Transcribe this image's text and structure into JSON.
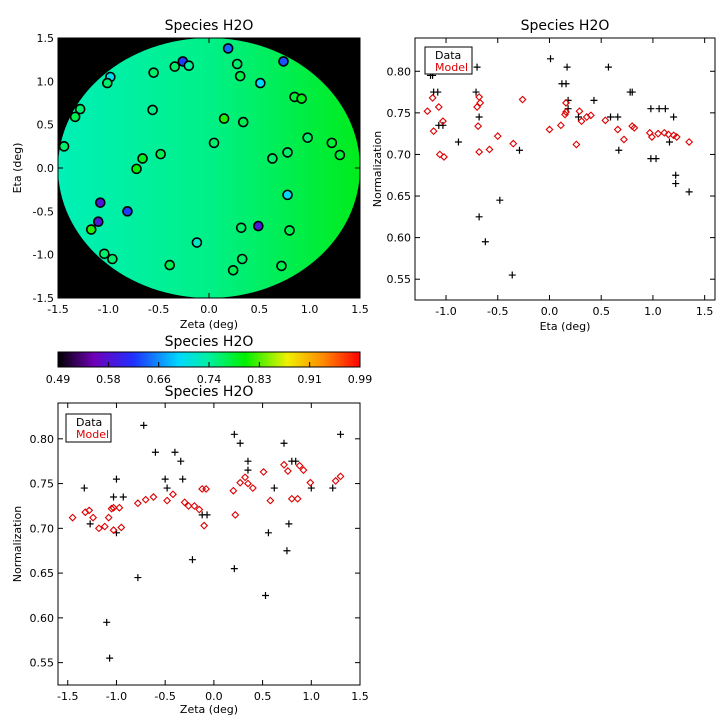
{
  "panels": {
    "map": {
      "title": "Species H2O",
      "xlabel": "Zeta (deg)",
      "ylabel": "Eta (deg)"
    },
    "colorbar": {
      "title": "Species H2O"
    },
    "eta_plot": {
      "title": "Species H2O",
      "xlabel": "Eta (deg)",
      "ylabel": "Normalization"
    },
    "zeta_plot": {
      "title": "Species H2O",
      "xlabel": "Zeta (deg)",
      "ylabel": "Normalization"
    },
    "legend": {
      "data_label": "Data",
      "model_label": "Model"
    }
  },
  "colors": {
    "data": "#000000",
    "model": "#dd0000",
    "field_background": "#000000"
  },
  "chart_data": [
    {
      "type": "scatter",
      "panel": "map",
      "title": "Species H2O",
      "xlabel": "Zeta (deg)",
      "ylabel": "Eta (deg)",
      "xlim": [
        -1.5,
        1.5
      ],
      "ylim": [
        -1.5,
        1.5
      ],
      "xticks": [
        -1.5,
        -1.0,
        -0.5,
        0.0,
        0.5,
        1.0,
        1.5
      ],
      "yticks": [
        -1.5,
        -1.0,
        -0.5,
        0.0,
        0.5,
        1.0,
        1.5
      ],
      "xtick_labels": [
        "-1.5",
        "-1.0",
        "-0.5",
        "0.0",
        "0.5",
        "1.0",
        "1.5"
      ],
      "ytick_labels": [
        "-1.5",
        "-1.0",
        "-0.5",
        "0.0",
        "0.5",
        "1.0",
        "1.5"
      ],
      "field": "circular model map, value increasing from about 0.70 at left to about 0.77 at right",
      "points": [
        {
          "zeta": 0.19,
          "eta": 1.38,
          "value": 0.64
        },
        {
          "zeta": 0.74,
          "eta": 1.23,
          "value": 0.63
        },
        {
          "zeta": -0.26,
          "eta": 1.23,
          "value": 0.62
        },
        {
          "zeta": -0.34,
          "eta": 1.17,
          "value": 0.76
        },
        {
          "zeta": -0.2,
          "eta": 1.18,
          "value": 0.74
        },
        {
          "zeta": 0.28,
          "eta": 1.2,
          "value": 0.76
        },
        {
          "zeta": -0.55,
          "eta": 1.1,
          "value": 0.76
        },
        {
          "zeta": 0.31,
          "eta": 1.06,
          "value": 0.77
        },
        {
          "zeta": -0.98,
          "eta": 1.05,
          "value": 0.7
        },
        {
          "zeta": -1.01,
          "eta": 0.98,
          "value": 0.76
        },
        {
          "zeta": 0.51,
          "eta": 0.98,
          "value": 0.69
        },
        {
          "zeta": 0.85,
          "eta": 0.82,
          "value": 0.78
        },
        {
          "zeta": 0.92,
          "eta": 0.8,
          "value": 0.79
        },
        {
          "zeta": -1.28,
          "eta": 0.68,
          "value": 0.76
        },
        {
          "zeta": -1.33,
          "eta": 0.59,
          "value": 0.77
        },
        {
          "zeta": -0.56,
          "eta": 0.67,
          "value": 0.75
        },
        {
          "zeta": 0.15,
          "eta": 0.57,
          "value": 0.81
        },
        {
          "zeta": 0.34,
          "eta": 0.53,
          "value": 0.77
        },
        {
          "zeta": 0.98,
          "eta": 0.35,
          "value": 0.76
        },
        {
          "zeta": 1.22,
          "eta": 0.29,
          "value": 0.78
        },
        {
          "zeta": 0.05,
          "eta": 0.29,
          "value": 0.76
        },
        {
          "zeta": -1.44,
          "eta": 0.25,
          "value": 0.76
        },
        {
          "zeta": -0.48,
          "eta": 0.16,
          "value": 0.77
        },
        {
          "zeta": 0.78,
          "eta": 0.18,
          "value": 0.76
        },
        {
          "zeta": -0.66,
          "eta": 0.11,
          "value": 0.79
        },
        {
          "zeta": 0.63,
          "eta": 0.11,
          "value": 0.76
        },
        {
          "zeta": 1.3,
          "eta": 0.15,
          "value": 0.78
        },
        {
          "zeta": -0.72,
          "eta": -0.01,
          "value": 0.8
        },
        {
          "zeta": 0.78,
          "eta": -0.31,
          "value": 0.69
        },
        {
          "zeta": -1.08,
          "eta": -0.4,
          "value": 0.58
        },
        {
          "zeta": -0.81,
          "eta": -0.5,
          "value": 0.62
        },
        {
          "zeta": -1.1,
          "eta": -0.62,
          "value": 0.58
        },
        {
          "zeta": -1.17,
          "eta": -0.71,
          "value": 0.81
        },
        {
          "zeta": 0.49,
          "eta": -0.67,
          "value": 0.58
        },
        {
          "zeta": 0.32,
          "eta": -0.69,
          "value": 0.76
        },
        {
          "zeta": 0.8,
          "eta": -0.72,
          "value": 0.77
        },
        {
          "zeta": -0.12,
          "eta": -0.86,
          "value": 0.72
        },
        {
          "zeta": -1.04,
          "eta": -0.99,
          "value": 0.76
        },
        {
          "zeta": -0.96,
          "eta": -1.05,
          "value": 0.76
        },
        {
          "zeta": 0.33,
          "eta": -1.05,
          "value": 0.76
        },
        {
          "zeta": -0.39,
          "eta": -1.12,
          "value": 0.77
        },
        {
          "zeta": 0.24,
          "eta": -1.18,
          "value": 0.77
        },
        {
          "zeta": 0.72,
          "eta": -1.13,
          "value": 0.77
        }
      ]
    },
    {
      "type": "heatmap",
      "panel": "colorbar",
      "title": "Species H2O",
      "range": [
        0.49,
        0.99
      ],
      "tick_labels": [
        "0.49",
        "0.58",
        "0.66",
        "0.74",
        "0.83",
        "0.91",
        "0.99"
      ],
      "colormap": "rainbow: black, violet, blue, cyan, green, yellow, orange, red"
    },
    {
      "type": "scatter",
      "panel": "eta_plot",
      "title": "Species H2O",
      "xlabel": "Eta (deg)",
      "ylabel": "Normalization",
      "xlim": [
        -1.3,
        1.6
      ],
      "ylim": [
        0.525,
        0.84
      ],
      "xticks": [
        -1.0,
        -0.5,
        0.0,
        0.5,
        1.0,
        1.5
      ],
      "yticks": [
        0.55,
        0.6,
        0.65,
        0.7,
        0.75,
        0.8
      ],
      "xtick_labels": [
        "-1.0",
        "-0.5",
        "0.0",
        "0.5",
        "1.0",
        "1.5"
      ],
      "ytick_labels": [
        "0.55",
        "0.60",
        "0.65",
        "0.70",
        "0.75",
        "0.80"
      ],
      "legend": "top-left",
      "series": [
        {
          "name": "Data",
          "marker": "plus",
          "points": [
            [
              -1.15,
              0.795
            ],
            [
              -1.13,
              0.795
            ],
            [
              -1.12,
              0.775
            ],
            [
              -1.08,
              0.775
            ],
            [
              -1.07,
              0.735
            ],
            [
              -1.03,
              0.735
            ],
            [
              -0.88,
              0.715
            ],
            [
              -0.7,
              0.805
            ],
            [
              -0.71,
              0.775
            ],
            [
              -0.68,
              0.745
            ],
            [
              -0.68,
              0.625
            ],
            [
              -0.62,
              0.595
            ],
            [
              -0.48,
              0.645
            ],
            [
              -0.36,
              0.555
            ],
            [
              -0.29,
              0.705
            ],
            [
              0.01,
              0.815
            ],
            [
              0.12,
              0.785
            ],
            [
              0.16,
              0.785
            ],
            [
              0.17,
              0.805
            ],
            [
              0.18,
              0.765
            ],
            [
              0.18,
              0.755
            ],
            [
              0.28,
              0.745
            ],
            [
              0.43,
              0.765
            ],
            [
              0.57,
              0.805
            ],
            [
              0.59,
              0.745
            ],
            [
              0.66,
              0.745
            ],
            [
              0.67,
              0.705
            ],
            [
              0.78,
              0.775
            ],
            [
              0.8,
              0.775
            ],
            [
              0.98,
              0.695
            ],
            [
              1.03,
              0.695
            ],
            [
              0.98,
              0.755
            ],
            [
              1.06,
              0.755
            ],
            [
              1.12,
              0.755
            ],
            [
              1.16,
              0.715
            ],
            [
              1.2,
              0.745
            ],
            [
              1.22,
              0.675
            ],
            [
              1.22,
              0.665
            ],
            [
              1.35,
              0.655
            ]
          ]
        },
        {
          "name": "Model",
          "marker": "diamond",
          "points": [
            [
              -1.18,
              0.752
            ],
            [
              -1.13,
              0.768
            ],
            [
              -1.12,
              0.728
            ],
            [
              -1.07,
              0.757
            ],
            [
              -1.06,
              0.7
            ],
            [
              -1.02,
              0.697
            ],
            [
              -1.03,
              0.74
            ],
            [
              -0.68,
              0.769
            ],
            [
              -0.67,
              0.762
            ],
            [
              -0.7,
              0.757
            ],
            [
              -0.69,
              0.734
            ],
            [
              -0.68,
              0.703
            ],
            [
              -0.58,
              0.706
            ],
            [
              -0.5,
              0.722
            ],
            [
              -0.35,
              0.713
            ],
            [
              -0.26,
              0.766
            ],
            [
              0.0,
              0.73
            ],
            [
              0.11,
              0.735
            ],
            [
              0.15,
              0.748
            ],
            [
              0.16,
              0.762
            ],
            [
              0.16,
              0.751
            ],
            [
              0.26,
              0.712
            ],
            [
              0.29,
              0.752
            ],
            [
              0.31,
              0.74
            ],
            [
              0.36,
              0.745
            ],
            [
              0.4,
              0.747
            ],
            [
              0.54,
              0.741
            ],
            [
              0.66,
              0.73
            ],
            [
              0.72,
              0.718
            ],
            [
              0.8,
              0.734
            ],
            [
              0.82,
              0.732
            ],
            [
              0.97,
              0.726
            ],
            [
              0.99,
              0.721
            ],
            [
              1.05,
              0.725
            ],
            [
              1.11,
              0.726
            ],
            [
              1.15,
              0.724
            ],
            [
              1.2,
              0.723
            ],
            [
              1.23,
              0.721
            ],
            [
              1.35,
              0.715
            ]
          ]
        }
      ]
    },
    {
      "type": "scatter",
      "panel": "zeta_plot",
      "title": "Species H2O",
      "xlabel": "Zeta (deg)",
      "ylabel": "Normalization",
      "xlim": [
        -1.6,
        1.5
      ],
      "ylim": [
        0.525,
        0.84
      ],
      "xticks": [
        -1.5,
        -1.0,
        -0.5,
        0.0,
        0.5,
        1.0,
        1.5
      ],
      "yticks": [
        0.55,
        0.6,
        0.65,
        0.7,
        0.75,
        0.8
      ],
      "xtick_labels": [
        "-1.5",
        "-1.0",
        "-0.5",
        "0.0",
        "0.5",
        "1.0",
        "1.5"
      ],
      "ytick_labels": [
        "0.55",
        "0.60",
        "0.65",
        "0.70",
        "0.75",
        "0.80"
      ],
      "legend": "top-left",
      "series": [
        {
          "name": "Data",
          "marker": "plus",
          "points": [
            [
              -1.33,
              0.745
            ],
            [
              -1.27,
              0.705
            ],
            [
              -1.16,
              0.805
            ],
            [
              -1.1,
              0.595
            ],
            [
              -1.07,
              0.555
            ],
            [
              -1.03,
              0.735
            ],
            [
              -1.0,
              0.755
            ],
            [
              -1.0,
              0.695
            ],
            [
              -0.93,
              0.735
            ],
            [
              -0.78,
              0.645
            ],
            [
              -0.72,
              0.815
            ],
            [
              -0.6,
              0.785
            ],
            [
              -0.5,
              0.755
            ],
            [
              -0.48,
              0.745
            ],
            [
              -0.4,
              0.785
            ],
            [
              -0.34,
              0.775
            ],
            [
              -0.32,
              0.755
            ],
            [
              -0.22,
              0.665
            ],
            [
              -0.12,
              0.715
            ],
            [
              -0.07,
              0.715
            ],
            [
              0.21,
              0.805
            ],
            [
              0.21,
              0.655
            ],
            [
              0.27,
              0.795
            ],
            [
              0.35,
              0.775
            ],
            [
              0.35,
              0.765
            ],
            [
              0.53,
              0.625
            ],
            [
              0.56,
              0.695
            ],
            [
              0.62,
              0.745
            ],
            [
              0.72,
              0.795
            ],
            [
              0.75,
              0.675
            ],
            [
              0.77,
              0.705
            ],
            [
              0.8,
              0.775
            ],
            [
              0.84,
              0.775
            ],
            [
              1.0,
              0.745
            ],
            [
              1.22,
              0.745
            ],
            [
              1.3,
              0.805
            ]
          ]
        },
        {
          "name": "Model",
          "marker": "diamond",
          "points": [
            [
              -1.45,
              0.712
            ],
            [
              -1.32,
              0.718
            ],
            [
              -1.28,
              0.72
            ],
            [
              -1.24,
              0.712
            ],
            [
              -1.18,
              0.7
            ],
            [
              -1.12,
              0.702
            ],
            [
              -1.08,
              0.712
            ],
            [
              -1.05,
              0.722
            ],
            [
              -1.03,
              0.723
            ],
            [
              -1.03,
              0.698
            ],
            [
              -0.97,
              0.723
            ],
            [
              -0.95,
              0.701
            ],
            [
              -0.78,
              0.728
            ],
            [
              -0.7,
              0.732
            ],
            [
              -0.62,
              0.735
            ],
            [
              -0.48,
              0.731
            ],
            [
              -0.42,
              0.738
            ],
            [
              -0.3,
              0.729
            ],
            [
              -0.26,
              0.725
            ],
            [
              -0.2,
              0.725
            ],
            [
              -0.15,
              0.721
            ],
            [
              -0.12,
              0.744
            ],
            [
              -0.08,
              0.744
            ],
            [
              -0.1,
              0.703
            ],
            [
              0.2,
              0.742
            ],
            [
              0.22,
              0.715
            ],
            [
              0.27,
              0.751
            ],
            [
              0.32,
              0.757
            ],
            [
              0.35,
              0.75
            ],
            [
              0.4,
              0.745
            ],
            [
              0.51,
              0.763
            ],
            [
              0.58,
              0.731
            ],
            [
              0.72,
              0.771
            ],
            [
              0.76,
              0.764
            ],
            [
              0.8,
              0.733
            ],
            [
              0.86,
              0.733
            ],
            [
              0.88,
              0.77
            ],
            [
              0.92,
              0.765
            ],
            [
              0.99,
              0.751
            ],
            [
              1.25,
              0.753
            ],
            [
              1.3,
              0.758
            ]
          ]
        }
      ]
    }
  ]
}
